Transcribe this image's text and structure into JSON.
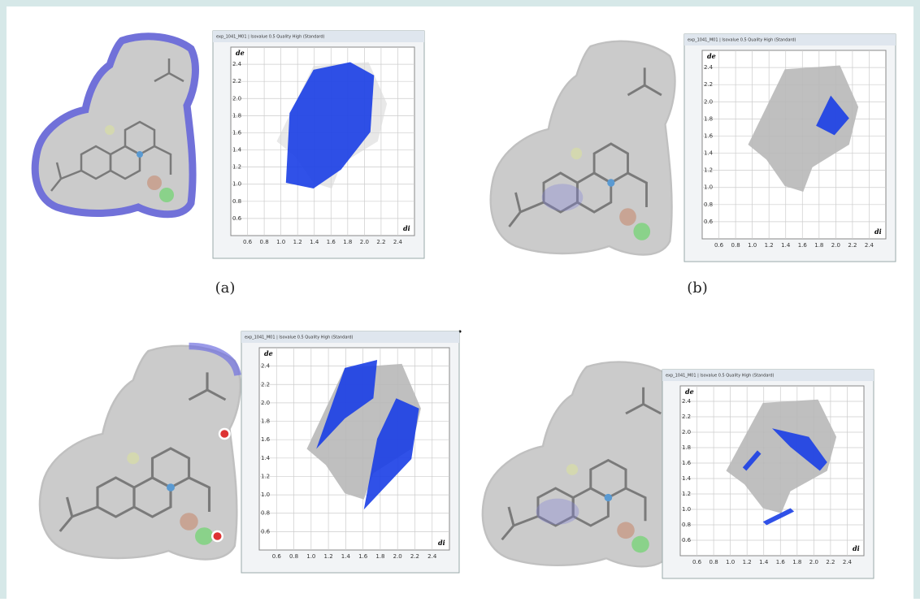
{
  "panels": [
    {
      "window_title": "exp_1041_M01 | Isovalue 0.5 Quality High (Standard)",
      "y_axis_label": "de",
      "x_axis_label": "di",
      "yticks": [
        "0.6",
        "0.8",
        "1.0",
        "1.2",
        "1.4",
        "1.6",
        "1.8",
        "2.0",
        "2.2",
        "2.4"
      ],
      "xticks": [
        "0.6",
        "0.8",
        "1.0",
        "1.2",
        "1.4",
        "1.6",
        "1.8",
        "2.0",
        "2.2",
        "2.4"
      ],
      "label": "(a)"
    },
    {
      "window_title": "exp_1041_M01 | Isovalue 0.5 Quality High (Standard)",
      "y_axis_label": "de",
      "x_axis_label": "di",
      "yticks": [
        "0.6",
        "0.8",
        "1.0",
        "1.2",
        "1.4",
        "1.6",
        "1.8",
        "2.0",
        "2.2",
        "2.4"
      ],
      "xticks": [
        "0.6",
        "0.8",
        "1.0",
        "1.2",
        "1.4",
        "1.6",
        "1.8",
        "2.0",
        "2.2",
        "2.4"
      ],
      "label": "(b)"
    },
    {
      "window_title": "exp_1041_M01 | Isovalue 0.5 Quality High (Standard)",
      "y_axis_label": "de",
      "x_axis_label": "di",
      "yticks": [
        "0.6",
        "0.8",
        "1.0",
        "1.2",
        "1.4",
        "1.6",
        "1.8",
        "2.0",
        "2.2",
        "2.4"
      ],
      "xticks": [
        "0.6",
        "0.8",
        "1.0",
        "1.2",
        "1.4",
        "1.6",
        "1.8",
        "2.0",
        "2.2",
        "2.4"
      ]
    },
    {
      "window_title": "exp_1041_M01 | Isovalue 0.5 Quality High (Standard)",
      "y_axis_label": "de",
      "x_axis_label": "di",
      "yticks": [
        "0.6",
        "0.8",
        "1.0",
        "1.2",
        "1.4",
        "1.6",
        "1.8",
        "2.0",
        "2.2",
        "2.4"
      ],
      "xticks": [
        "0.6",
        "0.8",
        "1.0",
        "1.2",
        "1.4",
        "1.6",
        "1.8",
        "2.0",
        "2.2",
        "2.4"
      ]
    }
  ]
}
